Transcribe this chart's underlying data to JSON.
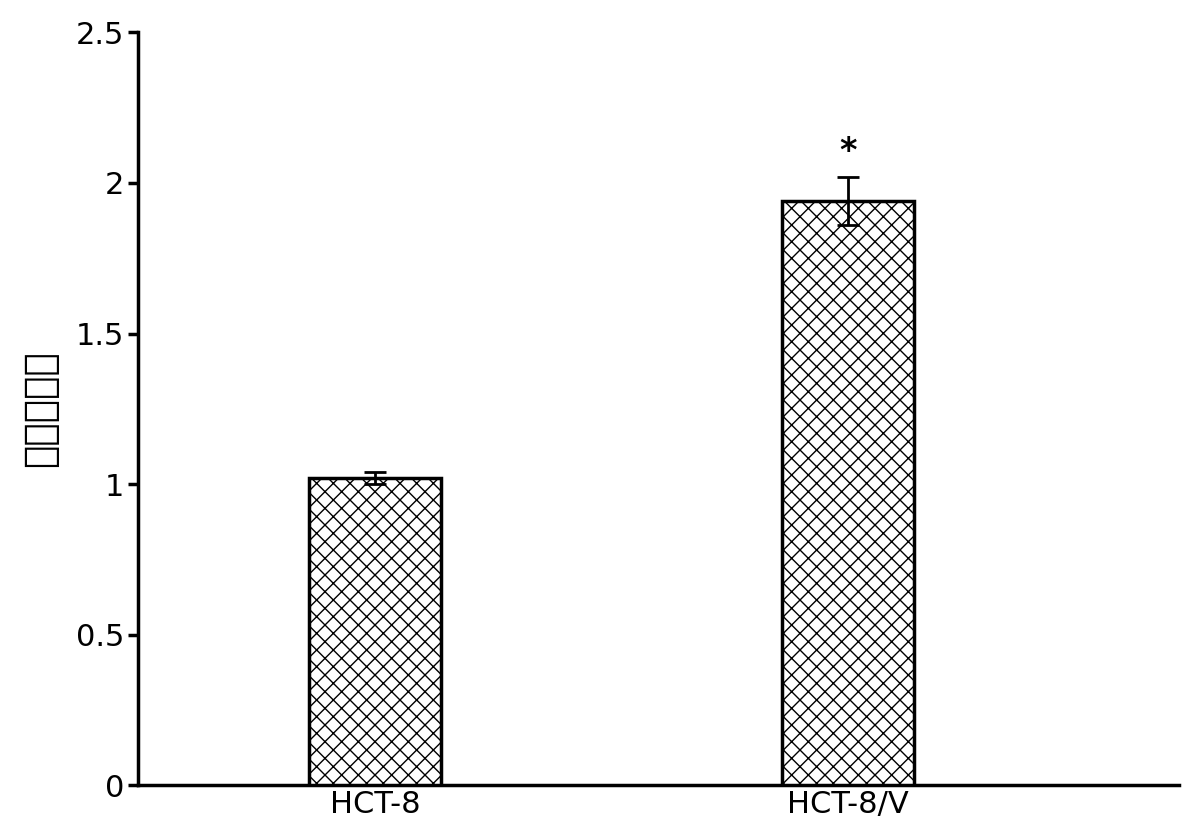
{
  "categories": [
    "HCT-8",
    "HCT-8/V"
  ],
  "values": [
    1.02,
    1.94
  ],
  "errors": [
    0.02,
    0.08
  ],
  "bar_color": "#ffffff",
  "bar_edgecolor": "#000000",
  "bar_width": 0.28,
  "bar_positions": [
    1,
    2
  ],
  "ylabel": "相对表达量",
  "ylim": [
    0,
    2.5
  ],
  "yticks": [
    0,
    0.5,
    1.0,
    1.5,
    2.0,
    2.5
  ],
  "ytick_labels": [
    "0",
    "0.5",
    "1",
    "1.5",
    "2",
    "2.5"
  ],
  "significance_label": "*",
  "sig_bar_index": 1,
  "background_color": "#ffffff",
  "hatch_pattern": "xx",
  "label_fontsize": 22,
  "tick_fontsize": 22,
  "sig_fontsize": 24,
  "ylabel_fontsize": 28,
  "linewidth": 2.5,
  "error_capsize": 8,
  "error_linewidth": 2.0,
  "xlim": [
    0.5,
    2.7
  ]
}
